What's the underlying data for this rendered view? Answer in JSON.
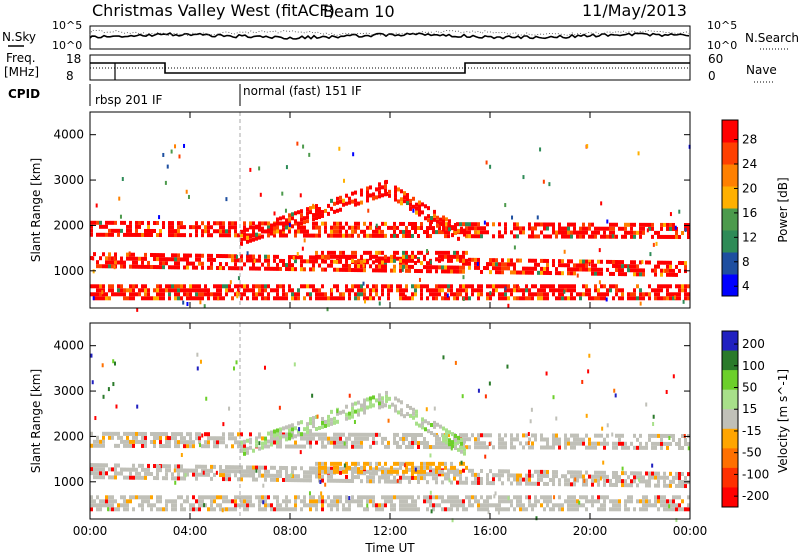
{
  "header": {
    "title": "Christmas Valley West (fitACF)",
    "beam": "Beam 10",
    "date": "11/May/2013"
  },
  "summary_panels": {
    "nsky_label": "N.Sky",
    "nsky_ticks": [
      "10^5",
      "10^0"
    ],
    "nsearch_label": "N.Search",
    "nsearch_ticks": [
      "10^5",
      "10^0"
    ],
    "freq_label_1": "Freq.",
    "freq_label_2": "[MHz]",
    "freq_ticks": [
      "18",
      "8"
    ],
    "nave_label": "Nave",
    "nave_ticks": [
      "60",
      "0"
    ],
    "cpid_label": "CPID",
    "cpid_segments": [
      "rbsp 201 IF",
      "normal (fast) 151 IF"
    ]
  },
  "colors": {
    "power": [
      "#0000ff",
      "#1e4fa0",
      "#2e8b57",
      "#4c9a4c",
      "#ffb000",
      "#ff8000",
      "#ff4000",
      "#ff0000"
    ],
    "velocity": [
      "#2020c0",
      "#2a7a2a",
      "#6ccf2a",
      "#a8e08a",
      "#c0c0b8",
      "#ffa500",
      "#ff7000",
      "#ff3000",
      "#ff0000"
    ]
  },
  "chart_data": [
    {
      "type": "heatmap",
      "title": "",
      "xlabel": "",
      "ylabel": "Slant Range [km]",
      "y_ticks": [
        "1000",
        "2000",
        "3000",
        "4000"
      ],
      "ylim": [
        180,
        4500
      ],
      "x_ticks": [
        "00:00",
        "04:00",
        "08:00",
        "12:00",
        "16:00",
        "20:00",
        "00:00"
      ],
      "colorbar_label": "Power [dB]",
      "colorbar_ticks": [
        "28",
        "24",
        "20",
        "16",
        "12",
        "8",
        "4"
      ],
      "bands": [
        {
          "x": [
            0,
            24
          ],
          "y_center": [
            1900,
            1850
          ],
          "width": 300
        },
        {
          "x": [
            0,
            24
          ],
          "y_center": [
            1200,
            1000
          ],
          "width": 280
        },
        {
          "x": [
            6,
            11.8
          ],
          "y_center": [
            1700,
            2800
          ],
          "width": 300
        },
        {
          "x": [
            11.8,
            15
          ],
          "y_center": [
            2800,
            1700
          ],
          "width": 300
        },
        {
          "x": [
            9,
            15
          ],
          "y_center": [
            1300,
            1300
          ],
          "width": 250
        },
        {
          "x": [
            0,
            24
          ],
          "y_center": [
            500,
            500
          ],
          "width": 300
        }
      ]
    },
    {
      "type": "heatmap",
      "title": "",
      "xlabel": "Time UT",
      "ylabel": "Slant Range [km]",
      "y_ticks": [
        "1000",
        "2000",
        "3000",
        "4000"
      ],
      "ylim": [
        180,
        4500
      ],
      "x_ticks": [
        "00:00",
        "04:00",
        "08:00",
        "12:00",
        "16:00",
        "20:00",
        "00:00"
      ],
      "colorbar_label": "Velocity [m s^-1]",
      "colorbar_ticks": [
        "200",
        "100",
        "50",
        "15",
        "-15",
        "-50",
        "-100",
        "-200"
      ],
      "bands": [
        {
          "x": [
            0,
            24
          ],
          "y_center": [
            1900,
            1850
          ],
          "width": 300
        },
        {
          "x": [
            0,
            24
          ],
          "y_center": [
            1200,
            1000
          ],
          "width": 280
        },
        {
          "x": [
            6,
            11.8
          ],
          "y_center": [
            1700,
            2800
          ],
          "width": 300
        },
        {
          "x": [
            11.8,
            15
          ],
          "y_center": [
            2800,
            1700
          ],
          "width": 300
        },
        {
          "x": [
            9,
            15
          ],
          "y_center": [
            1300,
            1300
          ],
          "width": 250
        },
        {
          "x": [
            0,
            24
          ],
          "y_center": [
            500,
            500
          ],
          "width": 300
        }
      ]
    }
  ]
}
